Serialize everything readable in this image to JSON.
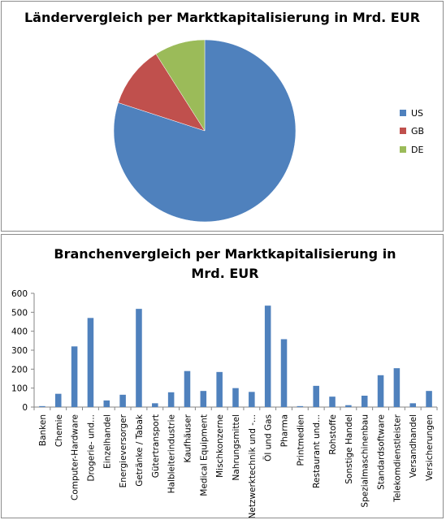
{
  "chart_data": [
    {
      "type": "pie",
      "title": "Ländervergleich per Marktkapitalisierung in Mrd. EUR",
      "categories": [
        "US",
        "GB",
        "DE"
      ],
      "values": [
        80,
        11,
        9
      ],
      "colors": [
        "#4f81bd",
        "#c0504d",
        "#9bbb59"
      ],
      "legend_position": "right"
    },
    {
      "type": "bar",
      "title": "Branchenvergleich per Marktkapitalisierung in Mrd. EUR",
      "categories": [
        "Banken",
        "Chemie",
        "Computer-Hardware",
        "Drogerie- und...",
        "Einzelhandel",
        "Energieversorger",
        "Getränke / Tabak",
        "Gütertransport",
        "Halbleiterindustrie",
        "Kaufhäuser",
        "Medical Equipment",
        "Mischkonzerne",
        "Nahrungsmittel",
        "Netzwerktechnik und -...",
        "Öl und Gas",
        "Pharma",
        "Printmedien",
        "Restaurant und...",
        "Rohstoffe",
        "Sonstige Handel",
        "Spezialmaschinenbau",
        "Standardsoftware",
        "Telekomdienstleister",
        "Versandhandel",
        "Versicherungen"
      ],
      "values": [
        5,
        70,
        320,
        470,
        35,
        65,
        518,
        20,
        78,
        190,
        85,
        185,
        100,
        80,
        535,
        358,
        5,
        112,
        55,
        10,
        60,
        168,
        205,
        20,
        85
      ],
      "ylim": [
        0,
        600
      ],
      "yticks": [
        0,
        100,
        200,
        300,
        400,
        500,
        600
      ],
      "color": "#4f81bd",
      "grid": false
    }
  ]
}
